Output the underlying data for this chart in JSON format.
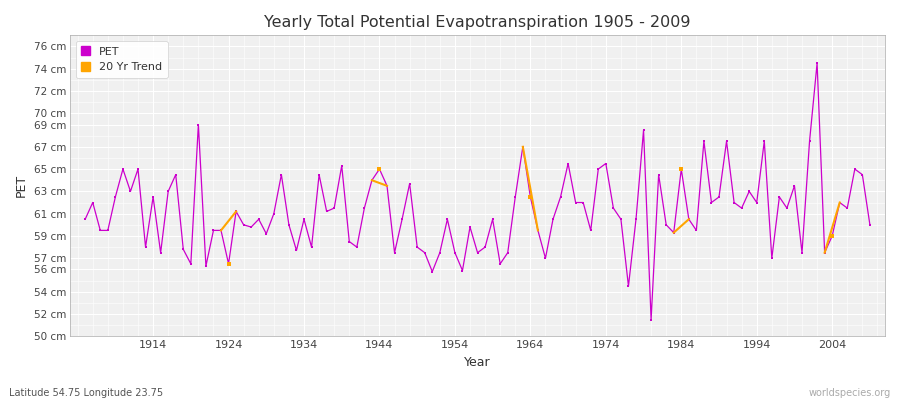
{
  "title": "Yearly Total Potential Evapotranspiration 1905 - 2009",
  "xlabel": "Year",
  "ylabel": "PET",
  "subtitle": "Latitude 54.75 Longitude 23.75",
  "watermark": "worldspecies.org",
  "pet_color": "#cc00cc",
  "trend_color": "#ffa500",
  "bg_color": "#ffffff",
  "plot_bg_color": "#f0f0f0",
  "grid_color": "#d8d8d8",
  "ylim": [
    50,
    77
  ],
  "yticks": [
    50,
    52,
    54,
    56,
    57,
    59,
    61,
    63,
    65,
    67,
    69,
    70,
    72,
    74,
    76
  ],
  "ytick_labels": [
    "50 cm",
    "52 cm",
    "54 cm",
    "56 cm",
    "57 cm",
    "59 cm",
    "61 cm",
    "63 cm",
    "65 cm",
    "67 cm",
    "69 cm",
    "70 cm",
    "72 cm",
    "74 cm",
    "76 cm"
  ],
  "xticks": [
    1914,
    1924,
    1934,
    1944,
    1954,
    1964,
    1974,
    1984,
    1994,
    2004
  ],
  "years": [
    1905,
    1906,
    1907,
    1908,
    1909,
    1910,
    1911,
    1912,
    1913,
    1914,
    1915,
    1916,
    1917,
    1918,
    1919,
    1920,
    1921,
    1922,
    1923,
    1924,
    1925,
    1926,
    1927,
    1928,
    1929,
    1930,
    1931,
    1932,
    1933,
    1934,
    1935,
    1936,
    1937,
    1938,
    1939,
    1940,
    1941,
    1942,
    1943,
    1944,
    1945,
    1946,
    1947,
    1948,
    1949,
    1950,
    1951,
    1952,
    1953,
    1954,
    1955,
    1956,
    1957,
    1958,
    1959,
    1960,
    1961,
    1962,
    1963,
    1964,
    1965,
    1966,
    1967,
    1968,
    1969,
    1970,
    1971,
    1972,
    1973,
    1974,
    1975,
    1976,
    1977,
    1978,
    1979,
    1980,
    1981,
    1982,
    1983,
    1984,
    1985,
    1986,
    1987,
    1988,
    1989,
    1990,
    1991,
    1992,
    1993,
    1994,
    1995,
    1996,
    1997,
    1998,
    1999,
    2000,
    2001,
    2002,
    2003,
    2004,
    2005,
    2006,
    2007,
    2008,
    2009
  ],
  "pet_values": [
    60.5,
    62.0,
    59.5,
    59.5,
    62.5,
    65.0,
    63.0,
    65.0,
    58.0,
    62.5,
    57.5,
    63.0,
    64.5,
    57.8,
    56.5,
    69.0,
    56.3,
    59.5,
    59.5,
    56.5,
    61.2,
    60.0,
    59.8,
    60.5,
    59.2,
    61.0,
    64.5,
    60.0,
    57.7,
    60.5,
    58.0,
    64.5,
    61.2,
    61.5,
    65.3,
    58.5,
    58.0,
    61.5,
    64.0,
    65.0,
    63.5,
    57.5,
    60.5,
    63.7,
    58.0,
    57.5,
    55.8,
    57.5,
    60.5,
    57.5,
    55.9,
    59.8,
    57.5,
    58.0,
    60.5,
    56.5,
    57.5,
    62.5,
    67.0,
    62.5,
    59.5,
    57.0,
    60.5,
    62.5,
    65.5,
    62.0,
    62.0,
    59.5,
    65.0,
    65.5,
    61.5,
    60.5,
    54.5,
    60.5,
    68.5,
    51.5,
    64.5,
    60.0,
    59.3,
    65.0,
    60.5,
    59.5,
    67.5,
    62.0,
    62.5,
    67.5,
    62.0,
    61.5,
    63.0,
    62.0,
    67.5,
    57.0,
    62.5,
    61.5,
    63.5,
    57.5,
    67.5,
    74.5,
    57.5,
    59.0,
    62.0,
    61.5,
    65.0,
    64.5,
    60.0
  ],
  "xlim": [
    1903,
    2011
  ],
  "figsize": [
    9.0,
    4.0
  ],
  "dpi": 100
}
